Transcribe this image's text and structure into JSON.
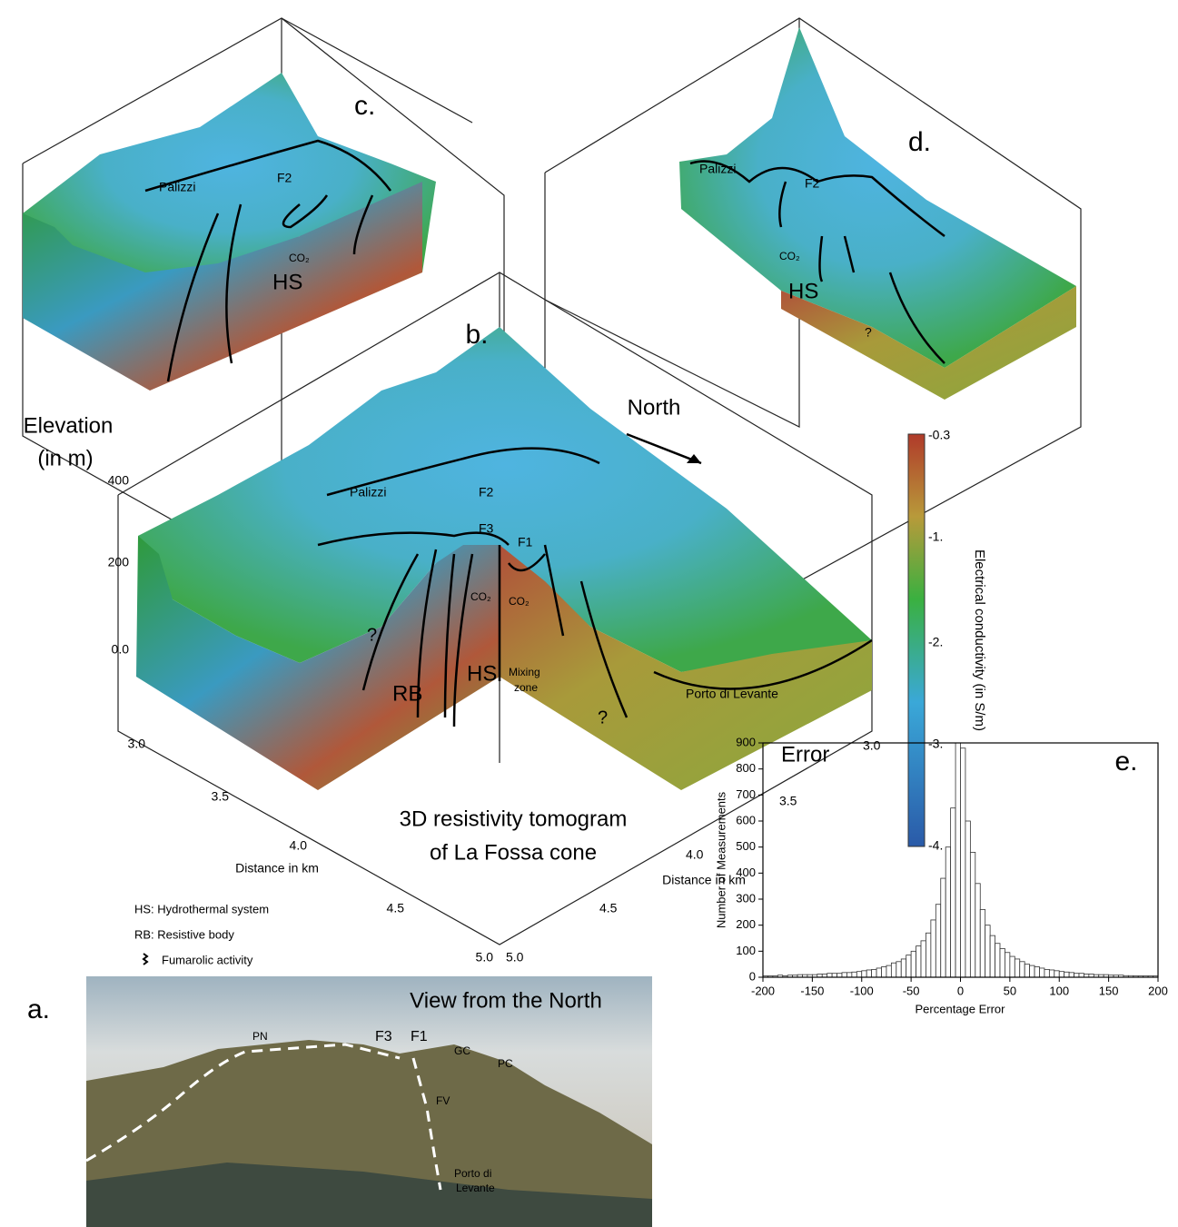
{
  "panel_c": {
    "letter": "c.",
    "annotations": [
      "Palizzi",
      "F2",
      "CO₂",
      "HS"
    ]
  },
  "panel_d": {
    "letter": "d.",
    "annotations": [
      "Palizzi",
      "F2",
      "CO₂",
      "HS",
      "?"
    ]
  },
  "panel_b": {
    "letter": "b.",
    "title_lines": [
      "3D resistivity tomogram",
      "of La Fossa cone"
    ],
    "north": "North",
    "elevation_label": [
      "Elevation",
      "(in m)"
    ],
    "elevation_ticks": [
      "400",
      "200",
      "0.0"
    ],
    "distance_label_left": "Distance in km",
    "distance_label_right": "Distance in km",
    "distance_ticks_left": [
      "3.0",
      "3.5",
      "4.0",
      "4.5",
      "5.0"
    ],
    "distance_ticks_right": [
      "3.0",
      "3.5",
      "4.0",
      "4.5",
      "5.0"
    ],
    "annotations": [
      "Palizzi",
      "F2",
      "F3",
      "F1",
      "CO₂",
      "CO₂",
      "?",
      "RB",
      "HS",
      "Mixing",
      "zone",
      "?",
      "Porto di Levante"
    ]
  },
  "colorbar": {
    "label": "Electrical conductivity (in S/m)",
    "ticks": [
      "-0.3",
      "-1.",
      "-2.",
      "-3.",
      "-4."
    ]
  },
  "legend": [
    "HS: Hydrothermal system",
    "RB: Resistive body",
    "Fumarolic activity"
  ],
  "panel_a": {
    "letter": "a.",
    "title": "View from the North",
    "annotations": [
      "PN",
      "F3",
      "F1",
      "GC",
      "PC",
      "FV",
      "Porto di",
      "Levante"
    ]
  },
  "chart_data": {
    "type": "histogram",
    "title": "Error",
    "panel_letter": "e.",
    "xlabel": "Percentage Error",
    "ylabel": "Number of Measurements",
    "bins": [
      -200,
      -195,
      -190,
      -185,
      -180,
      -175,
      -170,
      -165,
      -160,
      -155,
      -150,
      -145,
      -140,
      -135,
      -130,
      -125,
      -120,
      -115,
      -110,
      -105,
      -100,
      -95,
      -90,
      -85,
      -80,
      -75,
      -70,
      -65,
      -60,
      -55,
      -50,
      -45,
      -40,
      -35,
      -30,
      -25,
      -20,
      -15,
      -10,
      -5,
      0,
      5,
      10,
      15,
      20,
      25,
      30,
      35,
      40,
      45,
      50,
      55,
      60,
      65,
      70,
      75,
      80,
      85,
      90,
      95,
      100,
      105,
      110,
      115,
      120,
      125,
      130,
      135,
      140,
      145,
      150,
      155,
      160,
      165,
      170,
      175,
      180,
      185,
      190,
      195,
      200
    ],
    "values": [
      5,
      5,
      5,
      8,
      5,
      8,
      8,
      10,
      10,
      10,
      10,
      12,
      12,
      15,
      15,
      15,
      18,
      18,
      20,
      22,
      25,
      28,
      30,
      35,
      40,
      45,
      55,
      60,
      70,
      85,
      100,
      120,
      140,
      170,
      220,
      280,
      380,
      500,
      650,
      900,
      880,
      600,
      480,
      360,
      260,
      200,
      160,
      130,
      110,
      95,
      80,
      70,
      60,
      50,
      45,
      40,
      35,
      30,
      28,
      25,
      22,
      20,
      18,
      15,
      15,
      12,
      12,
      10,
      10,
      10,
      8,
      8,
      8,
      6,
      6,
      5,
      5,
      5,
      5,
      5
    ],
    "color": "#ffffff",
    "xlim": [
      -200,
      200
    ],
    "ylim": [
      0,
      900
    ],
    "xticks": [
      -200,
      -150,
      -100,
      -50,
      0,
      50,
      100,
      150,
      200
    ],
    "yticks": [
      0,
      100,
      200,
      300,
      400,
      500,
      600,
      700,
      800,
      900
    ]
  }
}
